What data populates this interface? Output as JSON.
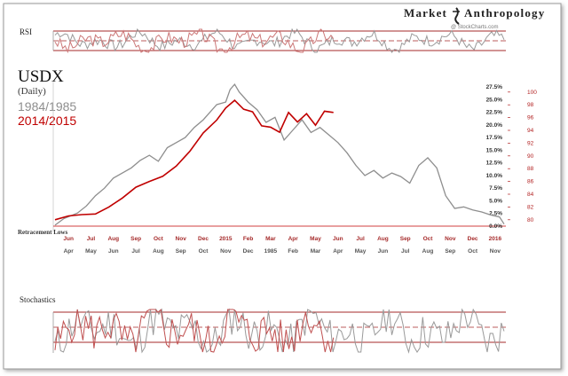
{
  "brand": {
    "text_a": "Market",
    "text_b": "Anthropology",
    "credit": "@ StockCharts.com"
  },
  "panels": {
    "rsi": {
      "label": "RSI"
    },
    "stochastics": {
      "label": "Stochastics"
    }
  },
  "main": {
    "title": "USDX",
    "subtitle": "(Daily)",
    "legend": [
      "1984/1985",
      "2014/2015"
    ],
    "annotation": "Retracement Lows"
  },
  "colors": {
    "gray": "#8e8e8e",
    "red": "#c00000",
    "axis_red": "#b22222"
  },
  "chart_data": {
    "type": "line",
    "title": "USDX",
    "subtitle": "(Daily)",
    "left_axis": {
      "ticks": [
        "0.0%",
        "2.5%",
        "5.0%",
        "7.5%",
        "10.0%",
        "12.5%",
        "15.0%",
        "17.5%",
        "20.0%",
        "22.5%",
        "25.0%",
        "27.5%"
      ],
      "range": [
        0,
        27.5
      ]
    },
    "right_axis": {
      "ticks": [
        80,
        82,
        84,
        86,
        88,
        90,
        92,
        94,
        96,
        98,
        100
      ],
      "range": [
        79,
        100.8
      ]
    },
    "x_axis_top": [
      "Jun",
      "Jul",
      "Aug",
      "Sep",
      "Oct",
      "Nov",
      "Dec",
      "2015",
      "Feb",
      "Mar",
      "Apr",
      "May",
      "Jun",
      "Jul",
      "Aug",
      "Sep",
      "Oct",
      "Nov",
      "Dec",
      "2016"
    ],
    "x_axis_bottom": [
      "Apr",
      "May",
      "Jun",
      "Jul",
      "Aug",
      "Sep",
      "Oct",
      "Nov",
      "Dec",
      "1985",
      "Feb",
      "Mar",
      "Apr",
      "May",
      "Jun",
      "Jul",
      "Aug",
      "Sep",
      "Oct",
      "Nov"
    ],
    "series": [
      {
        "name": "1984/1985",
        "t": [
          0,
          2,
          4,
          5,
          7,
          9,
          11,
          13,
          15,
          17,
          19,
          21,
          23,
          25,
          27,
          29,
          31,
          33,
          35,
          36,
          38,
          39,
          40,
          41,
          43,
          45,
          47,
          49,
          51,
          53,
          55,
          57,
          59,
          61,
          63,
          65,
          67,
          69,
          71,
          73,
          75,
          77,
          79,
          81,
          83,
          85,
          87,
          89,
          91,
          93,
          95,
          97,
          99,
          100
        ],
        "values": [
          0.2,
          1.5,
          2.2,
          2.6,
          4.0,
          6.0,
          7.5,
          9.5,
          10.5,
          11.5,
          13.0,
          14.0,
          12.8,
          15.5,
          16.5,
          17.5,
          19.5,
          21.0,
          23.0,
          24.0,
          24.5,
          27.0,
          28.0,
          26.5,
          24.5,
          23.0,
          20.5,
          21.5,
          17.0,
          19.0,
          21.0,
          18.5,
          19.5,
          18.0,
          16.5,
          14.5,
          12.0,
          10.0,
          11.0,
          9.5,
          10.5,
          9.8,
          8.5,
          12.0,
          13.5,
          11.5,
          6.0,
          3.5,
          3.8,
          3.2,
          2.8,
          2.2,
          1.8,
          0.4
        ]
      },
      {
        "name": "2014/2015",
        "t": [
          0,
          3,
          6,
          9,
          12,
          15,
          18,
          21,
          24,
          27,
          30,
          33,
          36,
          38,
          40,
          42,
          44,
          46,
          48,
          50,
          52,
          54,
          56,
          58,
          60,
          62
        ],
        "values": [
          80.0,
          80.6,
          80.8,
          80.9,
          82.0,
          83.4,
          85.1,
          86.0,
          86.8,
          88.4,
          90.7,
          93.6,
          95.6,
          97.5,
          98.7,
          97.3,
          96.9,
          94.7,
          94.5,
          93.7,
          96.8,
          95.3,
          96.6,
          94.8,
          97.0,
          96.8
        ]
      }
    ]
  }
}
